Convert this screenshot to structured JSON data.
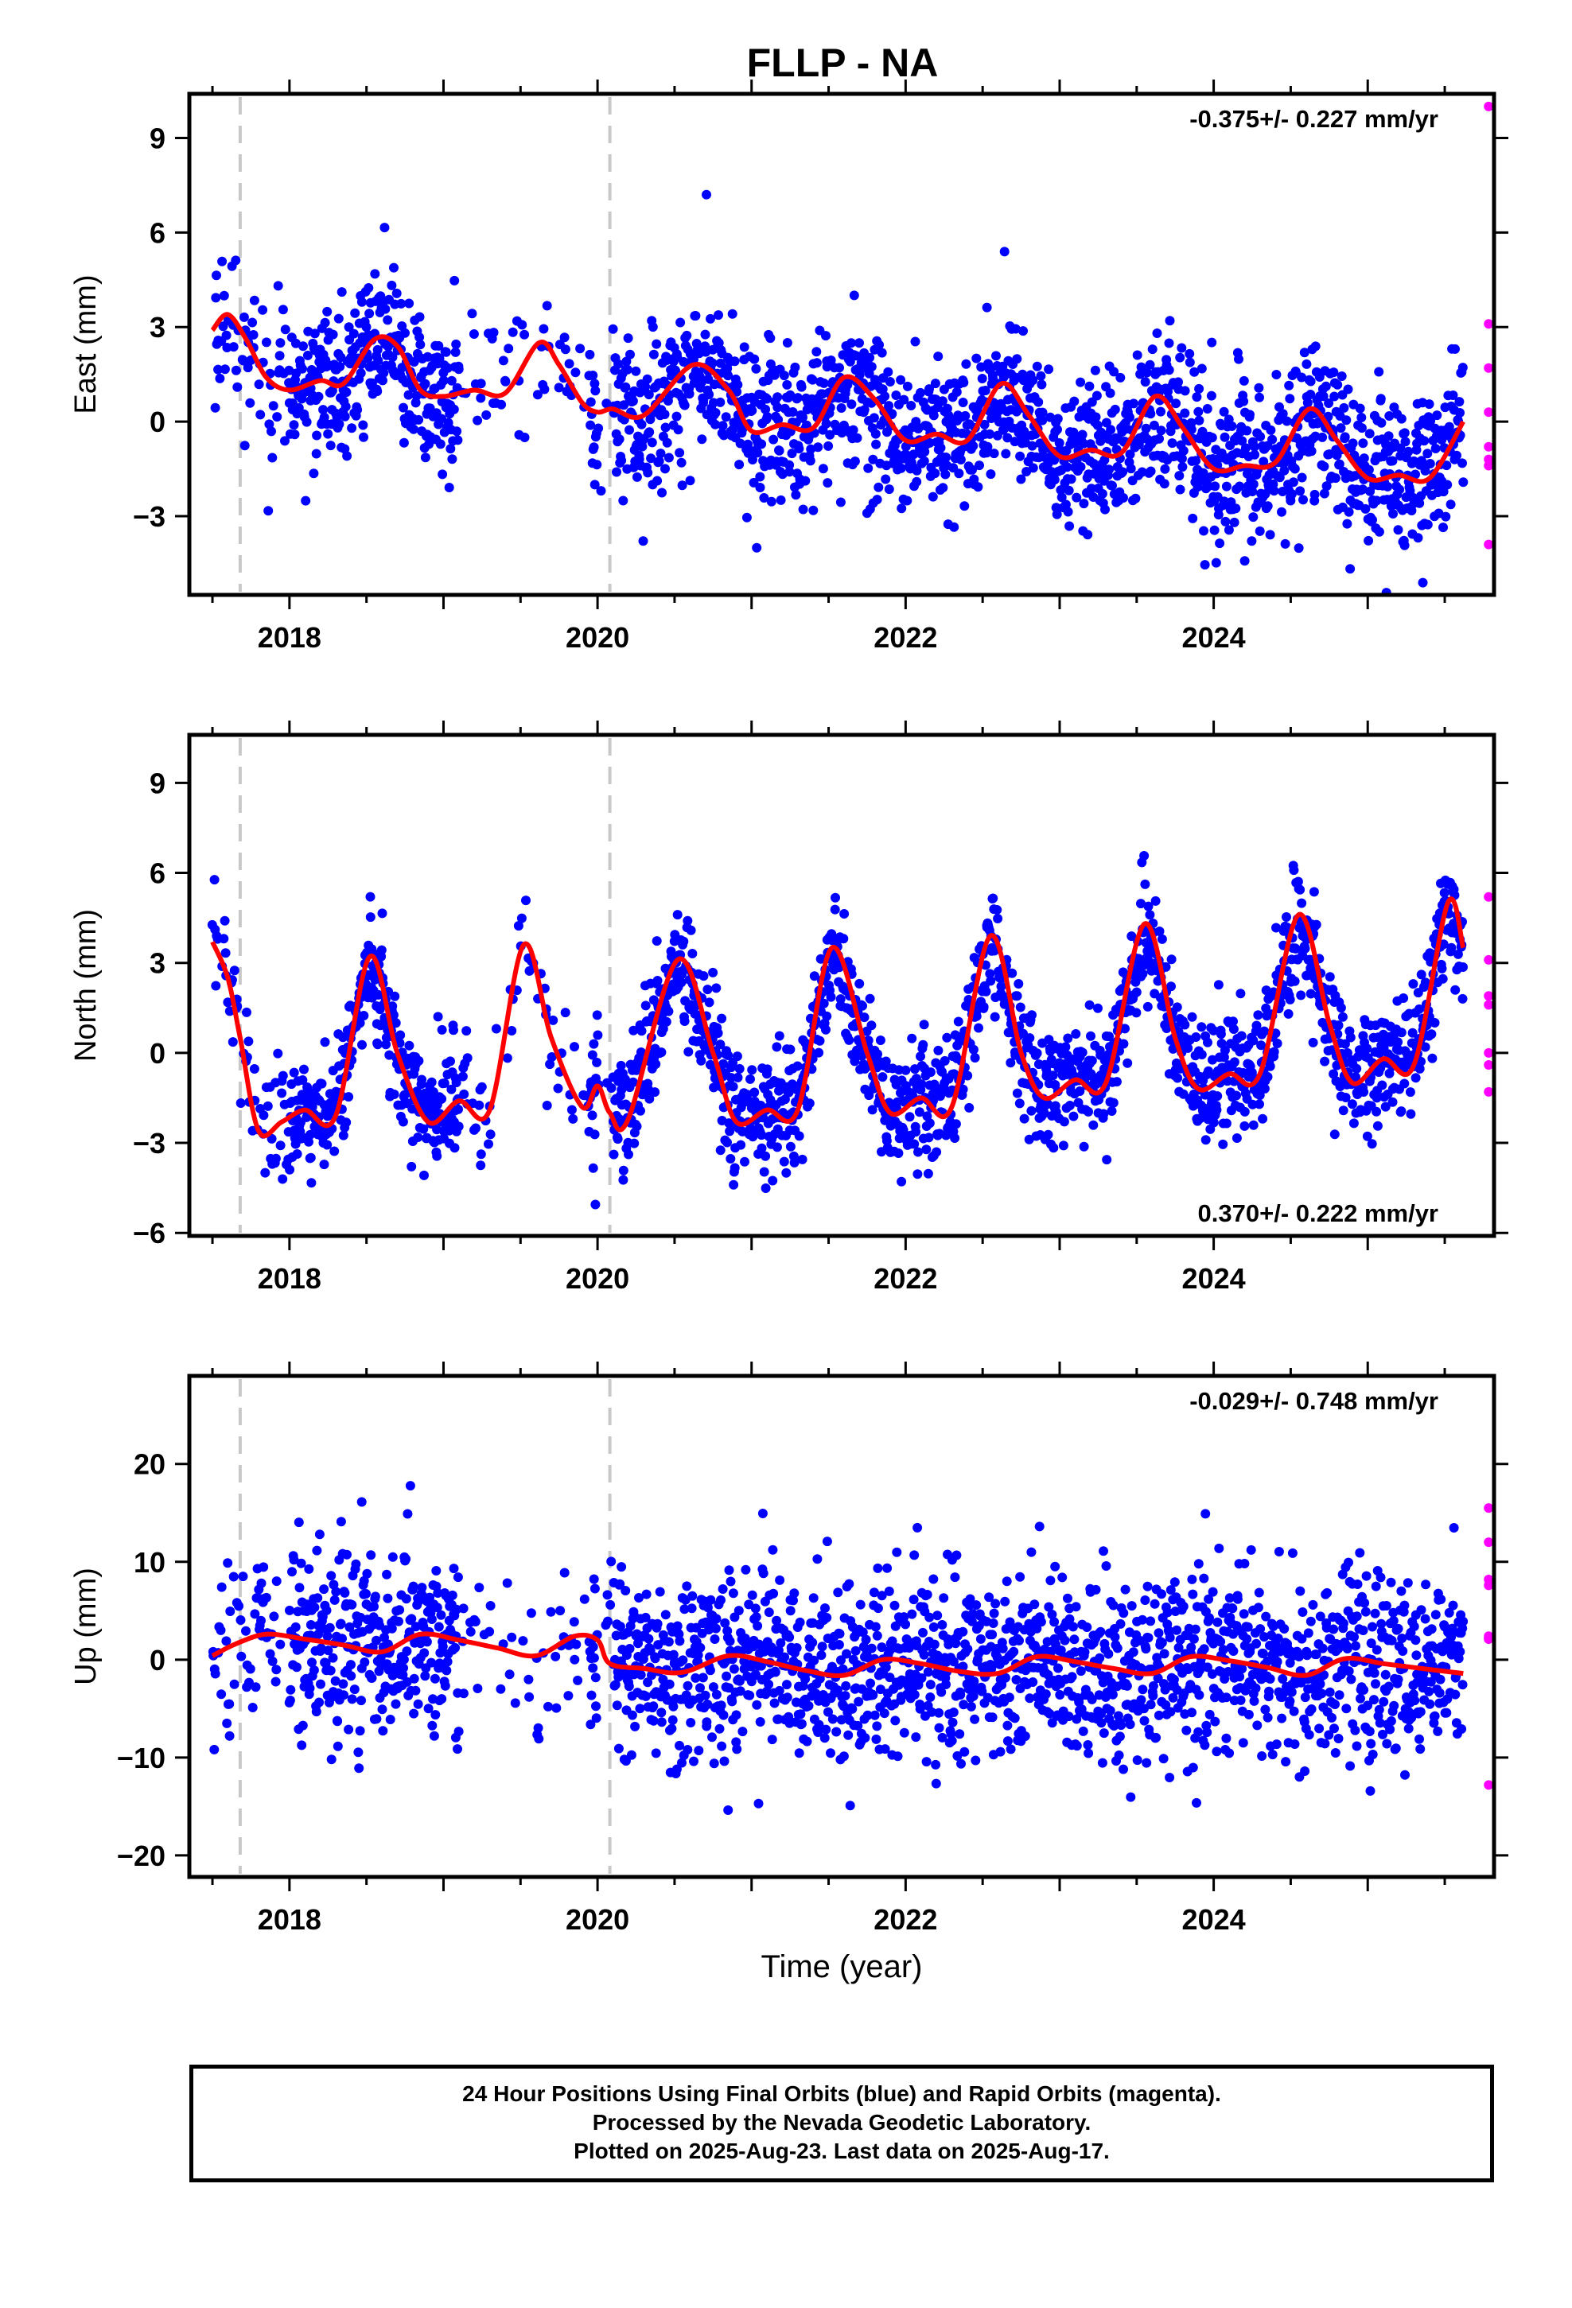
{
  "title": "FLLP - NA",
  "xlabel": "Time (year)",
  "caption": [
    "24 Hour Positions Using Final Orbits (blue) and Rapid Orbits (magenta).",
    "Processed by the Nevada Geodetic Laboratory.",
    "Plotted on 2025-Aug-23. Last data on 2025-Aug-17."
  ],
  "colors": {
    "final": "#0000ff",
    "rapid": "#ff00ff",
    "model": "#ff0000",
    "event_line": "#c8c8c8"
  },
  "chart_data": [
    {
      "type": "scatter",
      "ylabel": "East (mm)",
      "rate_label": "-0.375+/- 0.227 mm/yr",
      "xlim": [
        2017.35,
        2025.82
      ],
      "ylim": [
        -5.5,
        10.4
      ],
      "yticks": [
        -3,
        0,
        3,
        6,
        9
      ],
      "ytick_labels": [
        "−3",
        "0",
        "3",
        "6",
        "9"
      ],
      "xticks": [
        2018,
        2020,
        2022,
        2024
      ],
      "xtick_labels": [
        "2018",
        "2020",
        "2022",
        "2024"
      ],
      "event_lines": [
        2017.68,
        2020.08
      ],
      "trend": {
        "offset": 1.4,
        "rate": -0.375,
        "ref": 2017.5
      },
      "seasonal": {
        "amp": 1.3,
        "phase": 0.55
      },
      "noise": 1.2,
      "gap": [
        2020.0,
        2020.1
      ],
      "model": {
        "x": [
          2017.5,
          2017.6,
          2017.72,
          2017.85,
          2018.0,
          2018.2,
          2018.35,
          2018.55,
          2018.7,
          2018.85,
          2019.0,
          2019.2,
          2019.4,
          2019.62,
          2019.75,
          2019.9,
          2020.0,
          2020.1,
          2020.3,
          2020.62,
          2020.85,
          2021.0,
          2021.2,
          2021.4,
          2021.6,
          2021.8,
          2022.0,
          2022.2,
          2022.4,
          2022.62,
          2022.8,
          2023.0,
          2023.2,
          2023.4,
          2023.62,
          2023.8,
          2024.0,
          2024.2,
          2024.4,
          2024.62,
          2024.8,
          2025.0,
          2025.2,
          2025.4,
          2025.62
        ],
        "y": [
          2.9,
          3.4,
          2.6,
          1.4,
          1.0,
          1.3,
          1.2,
          2.6,
          2.4,
          1.0,
          0.8,
          1.0,
          0.9,
          2.5,
          1.8,
          0.6,
          0.3,
          0.4,
          0.2,
          1.8,
          1.0,
          -0.3,
          -0.1,
          -0.2,
          1.4,
          0.7,
          -0.6,
          -0.4,
          -0.6,
          1.2,
          0.2,
          -1.1,
          -0.9,
          -1.0,
          0.8,
          -0.2,
          -1.5,
          -1.4,
          -1.3,
          0.4,
          -0.6,
          -1.8,
          -1.7,
          -1.8,
          0.0
        ]
      },
      "rapid": {
        "x": [
          2025.62,
          2025.62,
          2025.62,
          2025.62,
          2025.62,
          2025.62,
          2025.62,
          2025.62
        ],
        "y": [
          10.0,
          3.1,
          1.7,
          0.3,
          -0.8,
          -1.2,
          -1.4,
          -3.9
        ]
      }
    },
    {
      "type": "scatter",
      "ylabel": "North (mm)",
      "rate_label": "0.370+/- 0.222 mm/yr",
      "xlim": [
        2017.35,
        2025.82
      ],
      "ylim": [
        -6.1,
        10.6
      ],
      "yticks": [
        -6,
        -3,
        0,
        3,
        6,
        9
      ],
      "ytick_labels": [
        "−6",
        "−3",
        "0",
        "3",
        "6",
        "9"
      ],
      "xticks": [
        2018,
        2020,
        2022,
        2024
      ],
      "xtick_labels": [
        "2018",
        "2020",
        "2022",
        "2024"
      ],
      "event_lines": [
        2017.68,
        2020.08
      ],
      "trend": {
        "offset": -0.3,
        "rate": 0.37,
        "ref": 2017.5
      },
      "seasonal": {
        "amp": 2.8,
        "phase": 0.62
      },
      "noise": 1.0,
      "gap": [
        2020.0,
        2020.1
      ],
      "model": {
        "x": [
          2017.5,
          2017.6,
          2017.68,
          2017.8,
          2017.95,
          2018.1,
          2018.3,
          2018.52,
          2018.7,
          2018.9,
          2019.1,
          2019.3,
          2019.52,
          2019.7,
          2019.9,
          2020.0,
          2020.08,
          2020.2,
          2020.52,
          2020.75,
          2020.9,
          2021.1,
          2021.3,
          2021.52,
          2021.75,
          2021.9,
          2022.1,
          2022.3,
          2022.55,
          2022.75,
          2022.9,
          2023.1,
          2023.3,
          2023.55,
          2023.75,
          2023.9,
          2024.1,
          2024.3,
          2024.55,
          2024.75,
          2024.9,
          2025.1,
          2025.3,
          2025.52,
          2025.62
        ],
        "y": [
          3.7,
          2.5,
          0.5,
          -2.6,
          -2.3,
          -1.9,
          -2.1,
          3.2,
          0.0,
          -2.3,
          -1.6,
          -1.9,
          3.6,
          0.5,
          -1.8,
          -1.1,
          -2.0,
          -2.2,
          3.1,
          0.0,
          -2.3,
          -1.9,
          -1.9,
          3.5,
          0.0,
          -2.0,
          -1.5,
          -1.8,
          3.9,
          0.0,
          -1.5,
          -0.9,
          -1.0,
          4.3,
          0.5,
          -1.2,
          -0.7,
          -0.7,
          4.6,
          1.0,
          -1.0,
          -0.2,
          -0.4,
          5.0,
          3.5
        ]
      },
      "rapid": {
        "x": [
          2025.62,
          2025.62,
          2025.62,
          2025.62,
          2025.62,
          2025.62,
          2025.62
        ],
        "y": [
          5.2,
          3.1,
          1.9,
          1.6,
          0.0,
          -0.4,
          -1.3
        ]
      }
    },
    {
      "type": "scatter",
      "ylabel": "Up (mm)",
      "rate_label": "-0.029+/- 0.748 mm/yr",
      "xlim": [
        2017.35,
        2025.82
      ],
      "ylim": [
        -22.2,
        29.0
      ],
      "yticks": [
        -20,
        -10,
        0,
        10,
        20
      ],
      "ytick_labels": [
        "−20",
        "−10",
        "0",
        "10",
        "20"
      ],
      "xticks": [
        2018,
        2020,
        2022,
        2024
      ],
      "xtick_labels": [
        "2018",
        "2020",
        "2022",
        "2024"
      ],
      "event_lines": [
        2017.68,
        2020.08
      ],
      "trend": {
        "offset": 0.6,
        "rate": -0.03,
        "ref": 2017.5
      },
      "seasonal": {
        "amp": 1.2,
        "phase": 0.85
      },
      "noise": 4.8,
      "gap": [
        2020.0,
        2020.1
      ],
      "model": {
        "x": [
          2017.5,
          2017.65,
          2017.85,
          2018.1,
          2018.35,
          2018.6,
          2018.85,
          2019.1,
          2019.35,
          2019.6,
          2019.85,
          2020.0,
          2020.08,
          2020.3,
          2020.55,
          2020.85,
          2021.1,
          2021.35,
          2021.6,
          2021.85,
          2022.1,
          2022.35,
          2022.6,
          2022.85,
          2023.1,
          2023.35,
          2023.6,
          2023.85,
          2024.1,
          2024.35,
          2024.6,
          2024.85,
          2025.1,
          2025.35,
          2025.62
        ],
        "y": [
          0.4,
          1.6,
          2.6,
          2.1,
          1.5,
          0.8,
          2.6,
          2.0,
          1.2,
          0.4,
          2.4,
          2.0,
          -0.4,
          -0.9,
          -1.3,
          0.4,
          -0.2,
          -1.1,
          -1.6,
          0.0,
          -0.4,
          -1.2,
          -1.4,
          0.3,
          -0.2,
          -0.9,
          -1.4,
          0.3,
          -0.1,
          -0.8,
          -1.6,
          0.1,
          -0.4,
          -0.9,
          -1.4
        ]
      },
      "rapid": {
        "x": [
          2025.62,
          2025.62,
          2025.62,
          2025.62,
          2025.62,
          2025.62,
          2025.62,
          2025.62
        ],
        "y": [
          15.5,
          12.0,
          8.2,
          7.6,
          2.4,
          2.1,
          -12.8,
          2.2
        ]
      }
    }
  ]
}
